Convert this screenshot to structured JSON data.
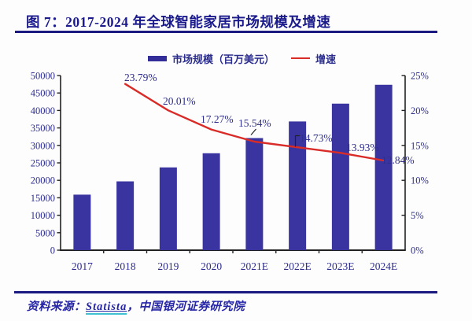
{
  "title": {
    "prefix": "图 7：2017-2024 年全球",
    "highlight": "智能家居",
    "suffix": "市场规模及增速"
  },
  "legend": {
    "bar_label": "市场规模（百万美元）",
    "line_label": "增速"
  },
  "footer": {
    "source_label": "资料来源：",
    "source_link": "Statista",
    "source_rest": "，中国银河证券研究院"
  },
  "colors": {
    "bar": "#3a34a0",
    "line": "#d92b27",
    "axis": "#222222",
    "axis_text": "#2e2e8e",
    "title_navy": "#1a1a8c",
    "accent_teal": "#3fc1d1"
  },
  "chart_data": {
    "type": "bar",
    "title": "图 7：2017-2024 年全球智能家居市场规模及增速",
    "categories": [
      "2017",
      "2018",
      "2019",
      "2020",
      "2021E",
      "2022E",
      "2023E",
      "2024E"
    ],
    "series": [
      {
        "name": "市场规模（百万美元）",
        "type": "bar",
        "axis": "left",
        "color": "#3a34a0",
        "values": [
          15900,
          19700,
          23700,
          27750,
          32100,
          36850,
          41950,
          47350
        ]
      },
      {
        "name": "增速",
        "type": "line",
        "axis": "right",
        "color": "#d92b27",
        "values": [
          null,
          23.79,
          20.01,
          17.27,
          15.54,
          14.73,
          13.93,
          12.84
        ],
        "point_labels": [
          "",
          "23.79%",
          "20.01%",
          "17.27%",
          "15.54%",
          "14.73%",
          "13.93%",
          "12.84%"
        ]
      }
    ],
    "left_axis": {
      "min": 0,
      "max": 50000,
      "step": 5000,
      "tick_labels": [
        "0",
        "5000",
        "10000",
        "15000",
        "20000",
        "25000",
        "30000",
        "35000",
        "40000",
        "45000",
        "50000"
      ]
    },
    "right_axis": {
      "min": 0,
      "max": 25,
      "step": 5,
      "tick_labels": [
        "0%",
        "5%",
        "10%",
        "15%",
        "20%",
        "25%"
      ]
    },
    "grid": false,
    "legend_position": "top"
  }
}
